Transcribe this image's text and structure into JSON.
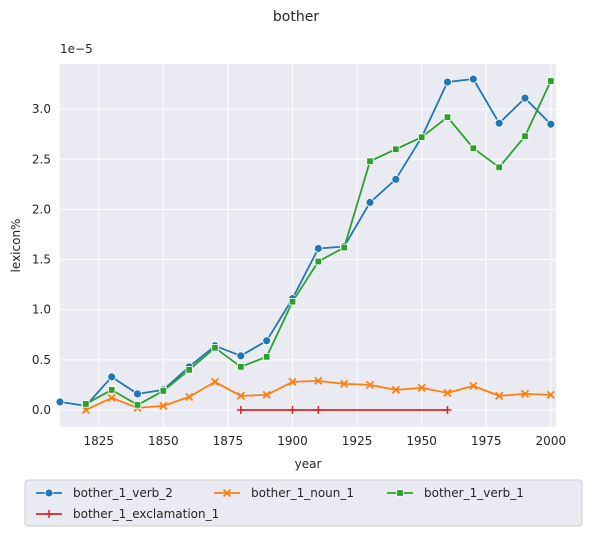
{
  "chart_data": {
    "type": "line",
    "title": "bother",
    "xlabel": "year",
    "ylabel": "lexicon%",
    "y_offset_label": "1e−5",
    "xlim": [
      1810,
      2002
    ],
    "ylim": [
      -0.17,
      3.45
    ],
    "x_ticks": [
      1825,
      1850,
      1875,
      1900,
      1925,
      1950,
      1975,
      2000
    ],
    "y_ticks": [
      0.0,
      0.5,
      1.0,
      1.5,
      2.0,
      2.5,
      3.0
    ],
    "y_tick_labels": [
      "0.0",
      "0.5",
      "1.0",
      "1.5",
      "2.0",
      "2.5",
      "3.0"
    ],
    "grid": true,
    "legend_placement": "bottom",
    "series": [
      {
        "name": "bother_1_verb_2",
        "color": "#1f77b4",
        "marker": "circle",
        "x": [
          1810,
          1820,
          1830,
          1840,
          1850,
          1860,
          1870,
          1880,
          1890,
          1900,
          1910,
          1920,
          1930,
          1940,
          1950,
          1960,
          1970,
          1980,
          1990,
          2000
        ],
        "y": [
          0.08,
          0.04,
          0.33,
          0.16,
          0.2,
          0.43,
          0.64,
          0.54,
          0.69,
          1.11,
          1.61,
          1.63,
          2.07,
          2.3,
          2.72,
          3.27,
          3.3,
          2.86,
          3.11,
          2.85
        ]
      },
      {
        "name": "bother_1_noun_1",
        "color": "#ff7f0e",
        "marker": "x",
        "x": [
          1820,
          1830,
          1840,
          1850,
          1860,
          1870,
          1880,
          1890,
          1900,
          1910,
          1920,
          1930,
          1940,
          1950,
          1960,
          1970,
          1980,
          1990,
          2000
        ],
        "y": [
          0.0,
          0.12,
          0.02,
          0.04,
          0.13,
          0.28,
          0.14,
          0.15,
          0.28,
          0.29,
          0.26,
          0.25,
          0.2,
          0.22,
          0.17,
          0.24,
          0.14,
          0.16,
          0.15
        ]
      },
      {
        "name": "bother_1_verb_1",
        "color": "#2ca02c",
        "marker": "square",
        "x": [
          1820,
          1830,
          1840,
          1850,
          1860,
          1870,
          1880,
          1890,
          1900,
          1910,
          1920,
          1930,
          1940,
          1950,
          1960,
          1970,
          1980,
          1990,
          2000
        ],
        "y": [
          0.06,
          0.2,
          0.05,
          0.19,
          0.4,
          0.62,
          0.43,
          0.53,
          1.08,
          1.48,
          1.62,
          2.48,
          2.6,
          2.72,
          2.92,
          2.61,
          2.42,
          2.73,
          3.28
        ]
      },
      {
        "name": "bother_1_exclamation_1",
        "color": "#d62728",
        "marker": "plus",
        "x": [
          1880,
          1900,
          1910,
          1960
        ],
        "y": [
          0.0,
          0.0,
          0.0,
          0.0
        ]
      }
    ]
  }
}
